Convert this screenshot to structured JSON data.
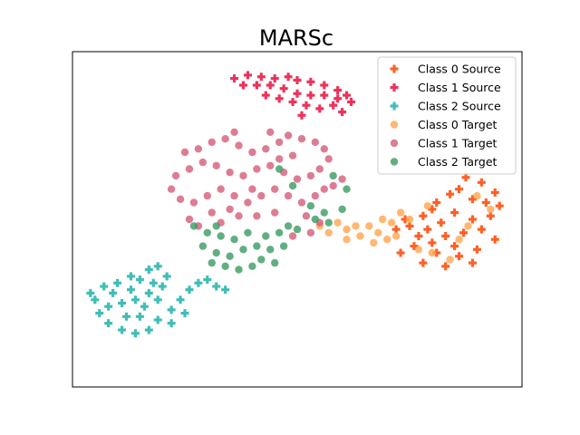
{
  "chart_data": {
    "type": "scatter",
    "title": "MARSc",
    "xlabel": "",
    "ylabel": "",
    "xlim": [
      -100,
      100
    ],
    "ylim": [
      -100,
      100
    ],
    "axes_ticks": false,
    "grid": false,
    "legend_position": "top-right",
    "series": [
      {
        "name": "Class 0 Source",
        "marker": "plus",
        "color": "#ff4500",
        "points": [
          [
            72,
            18
          ],
          [
            78,
            12
          ],
          [
            84,
            10
          ],
          [
            88,
            16
          ],
          [
            82,
            22
          ],
          [
            75,
            25
          ],
          [
            68,
            15
          ],
          [
            62,
            10
          ],
          [
            70,
            4
          ],
          [
            78,
            0
          ],
          [
            86,
            2
          ],
          [
            90,
            8
          ],
          [
            64,
            -2
          ],
          [
            58,
            -6
          ],
          [
            66,
            -10
          ],
          [
            74,
            -8
          ],
          [
            82,
            -6
          ],
          [
            88,
            -12
          ],
          [
            80,
            -18
          ],
          [
            70,
            -16
          ],
          [
            60,
            -14
          ],
          [
            54,
            -10
          ],
          [
            50,
            -4
          ],
          [
            56,
            2
          ],
          [
            60,
            6
          ],
          [
            48,
            0
          ],
          [
            44,
            -6
          ],
          [
            52,
            -16
          ],
          [
            62,
            -20
          ],
          [
            72,
            -22
          ],
          [
            78,
            -26
          ],
          [
            66,
            -28
          ],
          [
            56,
            -26
          ],
          [
            46,
            -20
          ]
        ]
      },
      {
        "name": "Class 1 Source",
        "marker": "plus",
        "color": "#e8103f",
        "points": [
          [
            -28,
            84
          ],
          [
            -22,
            86
          ],
          [
            -16,
            85
          ],
          [
            -10,
            84
          ],
          [
            -4,
            85
          ],
          [
            0,
            83
          ],
          [
            6,
            82
          ],
          [
            12,
            80
          ],
          [
            18,
            77
          ],
          [
            22,
            74
          ],
          [
            24,
            70
          ],
          [
            18,
            72
          ],
          [
            12,
            74
          ],
          [
            6,
            74
          ],
          [
            0,
            75
          ],
          [
            -6,
            78
          ],
          [
            -12,
            80
          ],
          [
            -18,
            80
          ],
          [
            -24,
            80
          ],
          [
            -8,
            72
          ],
          [
            -2,
            70
          ],
          [
            4,
            68
          ],
          [
            10,
            66
          ],
          [
            16,
            68
          ],
          [
            20,
            64
          ],
          [
            -14,
            74
          ],
          [
            2,
            62
          ]
        ]
      },
      {
        "name": "Class 2 Source",
        "marker": "plus",
        "color": "#20b2aa",
        "points": [
          [
            -92,
            -44
          ],
          [
            -86,
            -40
          ],
          [
            -80,
            -38
          ],
          [
            -74,
            -42
          ],
          [
            -70,
            -36
          ],
          [
            -66,
            -30
          ],
          [
            -62,
            -28
          ],
          [
            -58,
            -34
          ],
          [
            -60,
            -40
          ],
          [
            -66,
            -44
          ],
          [
            -72,
            -48
          ],
          [
            -78,
            -50
          ],
          [
            -84,
            -52
          ],
          [
            -88,
            -56
          ],
          [
            -84,
            -62
          ],
          [
            -78,
            -66
          ],
          [
            -72,
            -68
          ],
          [
            -66,
            -66
          ],
          [
            -62,
            -60
          ],
          [
            -56,
            -54
          ],
          [
            -52,
            -48
          ],
          [
            -48,
            -42
          ],
          [
            -44,
            -38
          ],
          [
            -40,
            -36
          ],
          [
            -36,
            -40
          ],
          [
            -32,
            -42
          ],
          [
            -50,
            -56
          ],
          [
            -56,
            -62
          ],
          [
            -70,
            -58
          ],
          [
            -76,
            -58
          ],
          [
            -82,
            -44
          ],
          [
            -68,
            -52
          ],
          [
            -62,
            -48
          ],
          [
            -90,
            -48
          ],
          [
            -74,
            -34
          ],
          [
            -64,
            -38
          ]
        ]
      },
      {
        "name": "Class 0 Target",
        "marker": "circle",
        "color": "#ffa54f",
        "points": [
          [
            18,
            -2
          ],
          [
            22,
            -6
          ],
          [
            26,
            -4
          ],
          [
            28,
            -10
          ],
          [
            22,
            -12
          ],
          [
            14,
            -8
          ],
          [
            10,
            -4
          ],
          [
            32,
            -4
          ],
          [
            36,
            -8
          ],
          [
            38,
            0
          ],
          [
            42,
            -2
          ],
          [
            40,
            -12
          ],
          [
            34,
            -14
          ],
          [
            46,
            4
          ],
          [
            50,
            0
          ],
          [
            44,
            -10
          ],
          [
            60,
            -20
          ],
          [
            68,
            -24
          ],
          [
            72,
            -12
          ],
          [
            76,
            -4
          ],
          [
            54,
            -18
          ],
          [
            80,
            14
          ],
          [
            86,
            6
          ],
          [
            58,
            8
          ]
        ]
      },
      {
        "name": "Class 1 Target",
        "marker": "circle",
        "color": "#d45d79",
        "points": [
          [
            -44,
            42
          ],
          [
            -38,
            46
          ],
          [
            -32,
            48
          ],
          [
            -26,
            44
          ],
          [
            -20,
            40
          ],
          [
            -14,
            42
          ],
          [
            -8,
            46
          ],
          [
            -4,
            50
          ],
          [
            2,
            48
          ],
          [
            8,
            46
          ],
          [
            12,
            42
          ],
          [
            14,
            36
          ],
          [
            10,
            30
          ],
          [
            6,
            26
          ],
          [
            0,
            24
          ],
          [
            -6,
            28
          ],
          [
            -12,
            32
          ],
          [
            -18,
            30
          ],
          [
            -24,
            26
          ],
          [
            -30,
            28
          ],
          [
            -36,
            32
          ],
          [
            -42,
            34
          ],
          [
            -48,
            30
          ],
          [
            -54,
            26
          ],
          [
            -56,
            18
          ],
          [
            -52,
            12
          ],
          [
            -46,
            10
          ],
          [
            -40,
            14
          ],
          [
            -34,
            18
          ],
          [
            -28,
            14
          ],
          [
            -22,
            10
          ],
          [
            -16,
            14
          ],
          [
            -10,
            18
          ],
          [
            -4,
            14
          ],
          [
            2,
            10
          ],
          [
            8,
            14
          ],
          [
            12,
            18
          ],
          [
            16,
            20
          ],
          [
            20,
            24
          ],
          [
            -2,
            38
          ],
          [
            -8,
            36
          ],
          [
            -20,
            18
          ],
          [
            -30,
            6
          ],
          [
            -38,
            4
          ],
          [
            -48,
            0
          ],
          [
            -44,
            -4
          ],
          [
            -34,
            -2
          ],
          [
            -26,
            2
          ],
          [
            -18,
            2
          ],
          [
            -10,
            4
          ],
          [
            4,
            2
          ],
          [
            10,
            -2
          ],
          [
            -12,
            52
          ],
          [
            -28,
            52
          ],
          [
            -50,
            40
          ],
          [
            -2,
            -10
          ],
          [
            6,
            -8
          ]
        ]
      },
      {
        "name": "Class 2 Target",
        "marker": "circle",
        "color": "#3a9b61",
        "points": [
          [
            -40,
            -8
          ],
          [
            -34,
            -10
          ],
          [
            -28,
            -12
          ],
          [
            -24,
            -18
          ],
          [
            -30,
            -22
          ],
          [
            -36,
            -20
          ],
          [
            -42,
            -16
          ],
          [
            -38,
            -26
          ],
          [
            -32,
            -28
          ],
          [
            -26,
            -30
          ],
          [
            -20,
            -28
          ],
          [
            -16,
            -24
          ],
          [
            -18,
            -16
          ],
          [
            -12,
            -18
          ],
          [
            -22,
            -8
          ],
          [
            -14,
            -10
          ],
          [
            -8,
            -8
          ],
          [
            -4,
            -4
          ],
          [
            0,
            -6
          ],
          [
            8,
            0
          ],
          [
            12,
            4
          ],
          [
            6,
            8
          ],
          [
            14,
            -2
          ],
          [
            20,
            6
          ],
          [
            22,
            18
          ],
          [
            16,
            26
          ],
          [
            -36,
            -4
          ],
          [
            -10,
            -26
          ],
          [
            -6,
            -16
          ],
          [
            -46,
            -4
          ],
          [
            -8,
            30
          ],
          [
            -2,
            20
          ]
        ]
      }
    ]
  }
}
